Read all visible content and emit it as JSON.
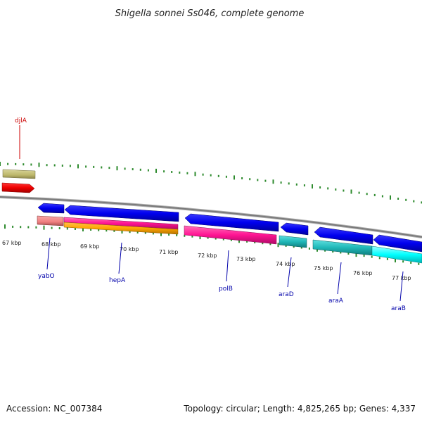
{
  "title": "Shigella sonnei Ss046, complete genome",
  "footer": {
    "accession": "Accession: NC_007384",
    "summary": "Topology: circular; Length: 4,825,265 bp; Genes: 4,337"
  },
  "axis": {
    "units": "kbp",
    "labels": [
      "67 kbp",
      "68 kbp",
      "69 kbp",
      "70 kbp",
      "71 kbp",
      "72 kbp",
      "73 kbp",
      "74 kbp",
      "75 kbp",
      "76 kbp",
      "77 kbp"
    ]
  },
  "genes": [
    {
      "name": "djlA",
      "strand": "forward",
      "color": "#cc0000"
    },
    {
      "name": "yabO",
      "strand": "reverse",
      "color": "#0000aa"
    },
    {
      "name": "hepA",
      "strand": "reverse",
      "color": "#0000aa"
    },
    {
      "name": "polB",
      "strand": "reverse",
      "color": "#0000aa"
    },
    {
      "name": "araD",
      "strand": "reverse",
      "color": "#0000aa"
    },
    {
      "name": "araA",
      "strand": "reverse",
      "color": "#0000aa"
    },
    {
      "name": "araB",
      "strand": "reverse",
      "color": "#0000aa"
    }
  ],
  "colors": {
    "forward_gene": "#ee0000",
    "reverse_gene": "#0000ee",
    "tick": "#2e8b2e",
    "backbone": "#888888"
  }
}
